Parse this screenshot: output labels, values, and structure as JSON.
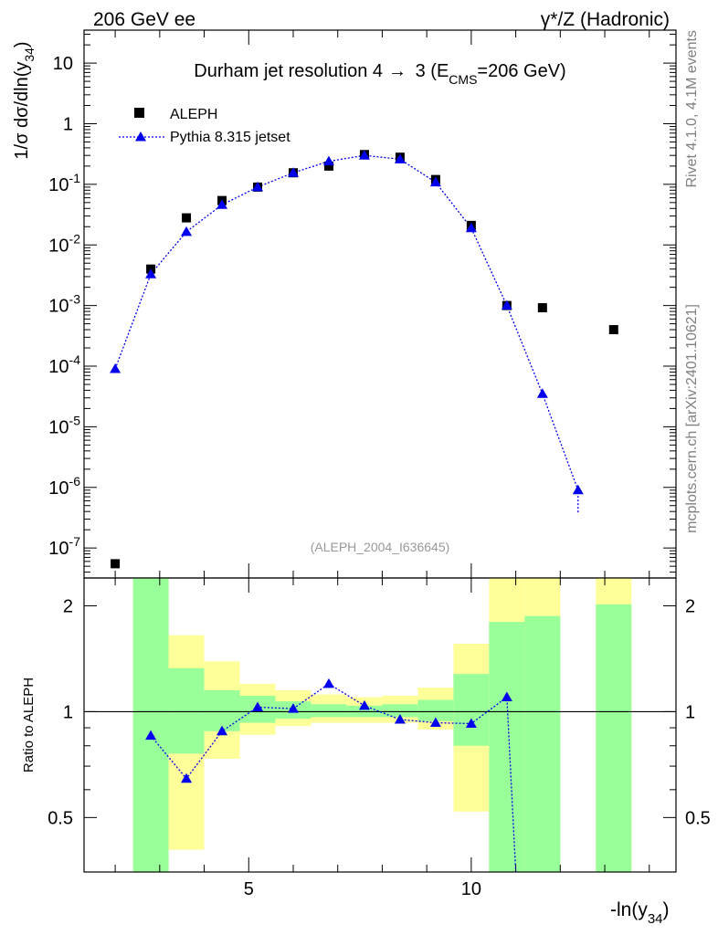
{
  "header": {
    "left": "206 GeV ee",
    "right": "γ*/Z (Hadronic)"
  },
  "side": {
    "rivet": "Rivet 4.1.0,  4.1M events",
    "site": "mcplots.cern.ch [arXiv:2401.10621]"
  },
  "chart_data": [
    {
      "type": "scatter",
      "panel": "main",
      "title_main": "Durham jet resolution 4",
      "title_arrow": "→",
      "title_tail_a": " 3 (E",
      "title_sub": "CMS",
      "title_tail_b": "=206 GeV)",
      "ylabel_a": "1/σ  dσ/dln(y",
      "ylabel_sub": "34",
      "ylabel_b": ")",
      "yscale": "log",
      "ylim": [
        3.2e-08,
        35
      ],
      "xlim": [
        1.3,
        14.6
      ],
      "y_tick_labels": [
        {
          "mant": "10",
          "exp": "-7",
          "v": 1e-07
        },
        {
          "mant": "10",
          "exp": "-6",
          "v": 1e-06
        },
        {
          "mant": "10",
          "exp": "-5",
          "v": 1e-05
        },
        {
          "mant": "10",
          "exp": "-4",
          "v": 0.0001
        },
        {
          "mant": "10",
          "exp": "-3",
          "v": 0.001
        },
        {
          "mant": "10",
          "exp": "-2",
          "v": 0.01
        },
        {
          "mant": "10",
          "exp": "-1",
          "v": 0.1
        },
        {
          "mant": "1",
          "exp": "",
          "v": 1
        },
        {
          "mant": "10",
          "exp": "",
          "v": 10
        }
      ],
      "watermark": "(ALEPH_2004_I636645)",
      "legend": {
        "placement": "top-left",
        "entries": [
          "ALEPH",
          "Pythia 8.315 jetset"
        ]
      },
      "series": [
        {
          "name": "ALEPH",
          "marker": "square",
          "color": "#000000",
          "x": [
            2.0,
            2.8,
            3.6,
            4.4,
            5.2,
            6.0,
            6.8,
            7.6,
            8.4,
            9.2,
            10.0,
            10.8,
            11.6,
            13.2
          ],
          "values": [
            5.5e-08,
            0.004,
            0.028,
            0.054,
            0.09,
            0.155,
            0.2,
            0.31,
            0.28,
            0.12,
            0.021,
            0.001,
            0.00092,
            0.0004
          ]
        },
        {
          "name": "Pythia 8.315 jetset",
          "marker": "triangle",
          "color": "#0000ee",
          "line": "dotted",
          "x": [
            2.0,
            2.8,
            3.6,
            4.4,
            5.2,
            6.0,
            6.8,
            7.6,
            8.4,
            9.2,
            10.0,
            10.8,
            11.6,
            12.4
          ],
          "values": [
            9e-05,
            0.0033,
            0.0165,
            0.046,
            0.09,
            0.155,
            0.24,
            0.3,
            0.26,
            0.108,
            0.019,
            0.001,
            3.5e-05,
            9e-07
          ],
          "tail_end": {
            "x": 12.4,
            "y": 3.8e-07
          }
        }
      ]
    },
    {
      "type": "scatter",
      "panel": "ratio",
      "ylabel": "Ratio to ALEPH",
      "xlabel_a": "-ln(y",
      "xlabel_sub": "34",
      "xlabel_b": ")",
      "yscale": "log",
      "ylim": [
        0.35,
        2.4
      ],
      "xlim": [
        1.3,
        14.6
      ],
      "x_ticks": [
        {
          "v": 5,
          "label": "5"
        },
        {
          "v": 10,
          "label": "10"
        }
      ],
      "y_ticks": [
        {
          "v": 0.5,
          "label": "0.5"
        },
        {
          "v": 1,
          "label": "1"
        },
        {
          "v": 2,
          "label": "2"
        }
      ],
      "bands": [
        {
          "x0": 2.4,
          "x1": 3.2,
          "y_lo": 0.3,
          "y_hi": 2.6,
          "g_lo": 0.3,
          "g_hi": 2.6
        },
        {
          "x0": 3.2,
          "x1": 4.0,
          "y_lo": 0.405,
          "y_hi": 1.65,
          "g_lo": 0.76,
          "g_hi": 1.33
        },
        {
          "x0": 4.0,
          "x1": 4.8,
          "y_lo": 0.735,
          "y_hi": 1.39,
          "g_lo": 0.88,
          "g_hi": 1.15
        },
        {
          "x0": 4.8,
          "x1": 5.6,
          "y_lo": 0.86,
          "y_hi": 1.2,
          "g_lo": 0.93,
          "g_hi": 1.11
        },
        {
          "x0": 5.6,
          "x1": 6.4,
          "y_lo": 0.91,
          "y_hi": 1.15,
          "g_lo": 0.955,
          "g_hi": 1.07
        },
        {
          "x0": 6.4,
          "x1": 7.2,
          "y_lo": 0.93,
          "y_hi": 1.12,
          "g_lo": 0.965,
          "g_hi": 1.05
        },
        {
          "x0": 7.2,
          "x1": 8.0,
          "y_lo": 0.93,
          "y_hi": 1.1,
          "g_lo": 0.965,
          "g_hi": 1.04
        },
        {
          "x0": 8.0,
          "x1": 8.8,
          "y_lo": 0.93,
          "y_hi": 1.11,
          "g_lo": 0.965,
          "g_hi": 1.05
        },
        {
          "x0": 8.8,
          "x1": 9.6,
          "y_lo": 0.89,
          "y_hi": 1.17,
          "g_lo": 0.94,
          "g_hi": 1.08
        },
        {
          "x0": 9.6,
          "x1": 10.4,
          "y_lo": 0.52,
          "y_hi": 1.56,
          "g_lo": 0.8,
          "g_hi": 1.28
        },
        {
          "x0": 10.4,
          "x1": 11.2,
          "y_lo": 0.3,
          "y_hi": 2.6,
          "g_lo": 0.3,
          "g_hi": 1.8
        },
        {
          "x0": 11.2,
          "x1": 12.0,
          "y_lo": 0.3,
          "y_hi": 2.6,
          "g_lo": 0.3,
          "g_hi": 1.87
        },
        {
          "x0": 12.8,
          "x1": 13.6,
          "y_lo": 0.3,
          "y_hi": 2.6,
          "g_lo": 0.3,
          "g_hi": 2.02
        }
      ],
      "series": [
        {
          "name": "Pythia 8.315 jetset / ALEPH",
          "marker": "triangle",
          "color": "#0000ee",
          "line": "dotted",
          "x": [
            2.8,
            3.6,
            4.4,
            5.2,
            6.0,
            6.8,
            7.6,
            8.4,
            9.2,
            10.0,
            10.8
          ],
          "values": [
            0.855,
            0.645,
            0.88,
            1.03,
            1.02,
            1.2,
            1.04,
            0.95,
            0.93,
            0.925,
            1.1
          ],
          "tail_end": {
            "x": 11.0,
            "y": 0.3
          }
        }
      ]
    }
  ],
  "colors": {
    "band_yellow": "#ffff99",
    "band_green": "#99ff99",
    "pythia": "#0000ee",
    "aleph": "#000000",
    "side_text": "#808080",
    "watermark": "#999999"
  }
}
